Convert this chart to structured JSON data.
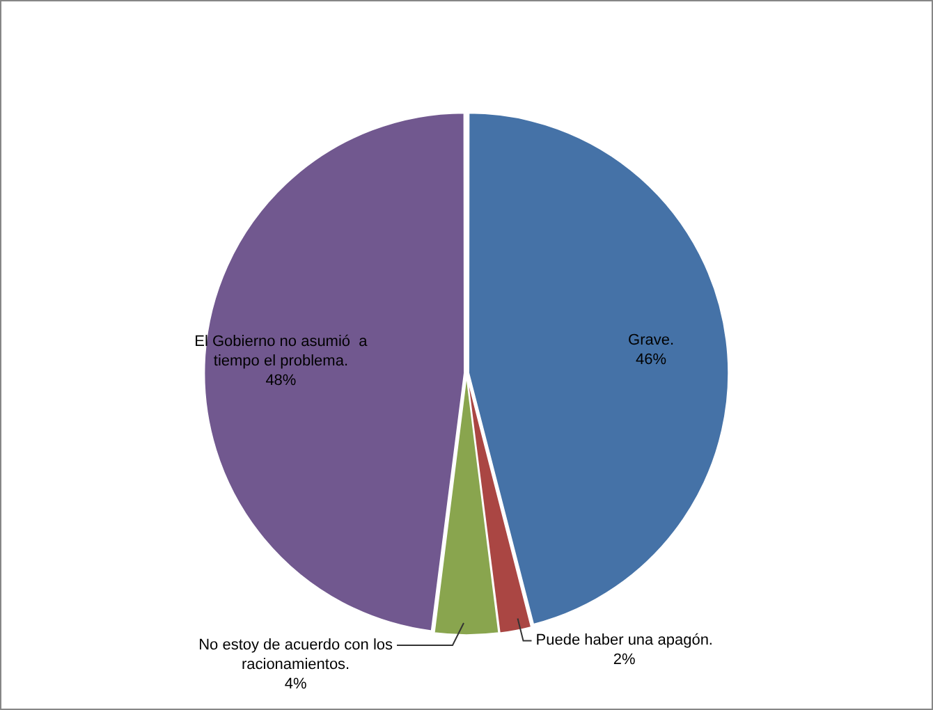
{
  "chart_data": {
    "type": "pie",
    "categories": [
      "Grave.",
      "Puede haber una apagón.",
      "No estoy de acuerdo con los racionamientos.",
      "El Gobierno no asumió  a tiempo el problema."
    ],
    "values": [
      46,
      2,
      4,
      48
    ],
    "colors": [
      "#4572a7",
      "#aa4643",
      "#89a54e",
      "#71588f"
    ],
    "value_labels": [
      "46%",
      "2%",
      "4%",
      "48%"
    ],
    "legend": false
  }
}
